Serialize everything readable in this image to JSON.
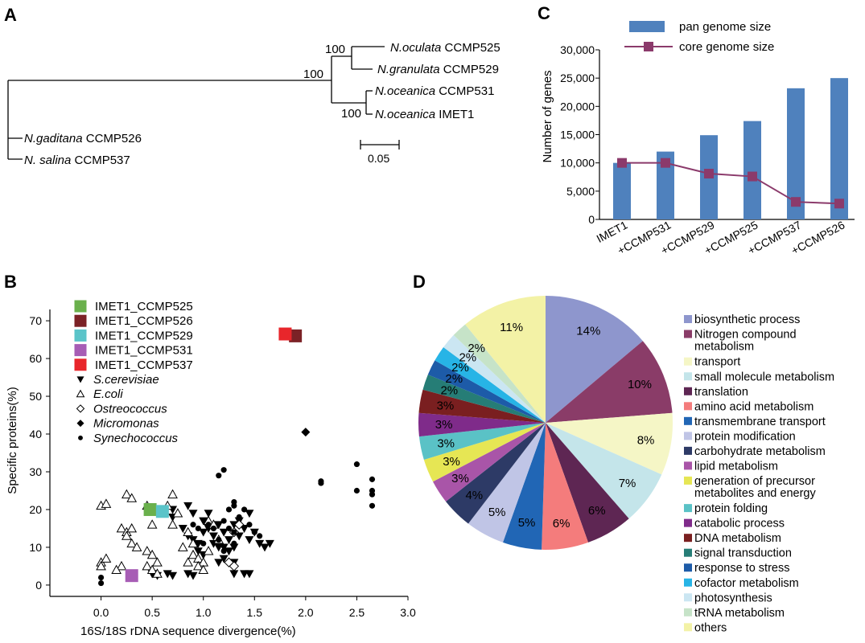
{
  "panels": {
    "a": "A",
    "b": "B",
    "c": "C",
    "d": "D"
  },
  "tree": {
    "taxa": [
      {
        "genus": "N.oculata",
        "strain": "CCMP525"
      },
      {
        "genus": "N.granulata",
        "strain": "CCMP529"
      },
      {
        "genus": "N.oceanica",
        "strain": "CCMP531"
      },
      {
        "genus": "N.oceanica",
        "strain": "IMET1"
      },
      {
        "genus": "N.gaditana",
        "strain": "CCMP526"
      },
      {
        "genus": "N. salina",
        "strain": "CCMP537"
      }
    ],
    "bootstrap": [
      "100",
      "100",
      "100"
    ],
    "scale_label": "0.05"
  },
  "chart_data": [
    {
      "type": "scatter",
      "panel": "B",
      "xlabel": "16S/18S rDNA sequence divergence(%)",
      "ylabel": "Specific proteins(%)",
      "xlim": [
        -0.5,
        3.0
      ],
      "ylim": [
        -3,
        73
      ],
      "xticks": [
        "0.0",
        "0.5",
        "1.0",
        "1.5",
        "2.0",
        "2.5",
        "3.0"
      ],
      "yticks": [
        "0",
        "10",
        "20",
        "30",
        "40",
        "50",
        "60",
        "70"
      ],
      "legend": [
        {
          "label": "IMET1_CCMP525",
          "marker": "square",
          "color": "#6ab04c",
          "italic": false
        },
        {
          "label": "IMET1_CCMP526",
          "marker": "square",
          "color": "#7b2226",
          "italic": false
        },
        {
          "label": "IMET1_CCMP529",
          "marker": "square",
          "color": "#5bc4c9",
          "italic": false
        },
        {
          "label": "IMET1_CCMP531",
          "marker": "square",
          "color": "#a75db5",
          "italic": false
        },
        {
          "label": "IMET1_CCMP537",
          "marker": "square",
          "color": "#e8262b",
          "italic": false
        },
        {
          "label": "S.cerevisiae",
          "marker": "tri-down",
          "color": "#000000",
          "italic": true
        },
        {
          "label": "E.coli",
          "marker": "tri-up-open",
          "color": "#000000",
          "italic": true
        },
        {
          "label": "Ostreococcus",
          "marker": "diamond-open",
          "color": "#000000",
          "italic": true
        },
        {
          "label": "Micromonas",
          "marker": "diamond",
          "color": "#000000",
          "italic": true
        },
        {
          "label": "Synechococcus",
          "marker": "circle",
          "color": "#000000",
          "italic": true
        }
      ],
      "series": [
        {
          "name": "IMET1_CCMP525",
          "points": [
            [
              0.48,
              20.0
            ]
          ]
        },
        {
          "name": "IMET1_CCMP526",
          "points": [
            [
              1.9,
              66.0
            ]
          ]
        },
        {
          "name": "IMET1_CCMP529",
          "points": [
            [
              0.6,
              19.5
            ]
          ]
        },
        {
          "name": "IMET1_CCMP531",
          "points": [
            [
              0.3,
              2.5
            ]
          ]
        },
        {
          "name": "IMET1_CCMP537",
          "points": [
            [
              1.8,
              66.5
            ]
          ]
        },
        {
          "name": "S.cerevisiae",
          "points": [
            [
              0.7,
              20
            ],
            [
              0.7,
              18
            ],
            [
              0.85,
              21
            ],
            [
              0.9,
              19
            ],
            [
              0.8,
              15
            ],
            [
              0.85,
              13
            ],
            [
              0.9,
              12
            ],
            [
              0.95,
              11
            ],
            [
              1.0,
              14
            ],
            [
              1.0,
              17
            ],
            [
              1.05,
              15
            ],
            [
              1.1,
              13
            ],
            [
              1.15,
              16
            ],
            [
              1.2,
              14
            ],
            [
              1.2,
              10
            ],
            [
              1.25,
              12
            ],
            [
              1.3,
              16
            ],
            [
              1.35,
              13
            ],
            [
              1.4,
              15
            ],
            [
              1.45,
              12
            ],
            [
              1.5,
              14
            ],
            [
              1.55,
              11
            ],
            [
              1.6,
              10
            ],
            [
              1.65,
              11
            ],
            [
              1.05,
              19
            ],
            [
              1.1,
              11
            ],
            [
              0.95,
              9
            ],
            [
              1.0,
              8
            ],
            [
              1.15,
              10
            ],
            [
              1.25,
              9
            ],
            [
              1.3,
              10
            ],
            [
              1.35,
              17
            ],
            [
              1.45,
              19
            ],
            [
              1.15,
              6
            ],
            [
              1.2,
              7
            ],
            [
              1.3,
              6
            ],
            [
              0.5,
              3
            ],
            [
              0.55,
              2.5
            ],
            [
              0.65,
              3
            ],
            [
              0.7,
              2.5
            ],
            [
              0.85,
              3
            ],
            [
              0.9,
              2.5
            ],
            [
              1.3,
              3
            ],
            [
              1.4,
              3
            ],
            [
              1.45,
              3
            ]
          ]
        },
        {
          "name": "E.coli",
          "points": [
            [
              0.0,
              21
            ],
            [
              0.05,
              21.5
            ],
            [
              0.25,
              24
            ],
            [
              0.3,
              23
            ],
            [
              0.2,
              15
            ],
            [
              0.25,
              14
            ],
            [
              0.3,
              15
            ],
            [
              0.25,
              13
            ],
            [
              0.3,
              11
            ],
            [
              0.35,
              10
            ],
            [
              0.45,
              21
            ],
            [
              0.5,
              16
            ],
            [
              0.45,
              9
            ],
            [
              0.5,
              8
            ],
            [
              0.55,
              6
            ],
            [
              0.45,
              5
            ],
            [
              0.5,
              4
            ],
            [
              0.55,
              3
            ],
            [
              0.65,
              21
            ],
            [
              0.7,
              24
            ],
            [
              0.75,
              19
            ],
            [
              0.7,
              16
            ],
            [
              0.85,
              14
            ],
            [
              0.8,
              10
            ],
            [
              0.9,
              8
            ],
            [
              0.95,
              7
            ],
            [
              1.0,
              6
            ],
            [
              0.95,
              5
            ],
            [
              1.0,
              4
            ],
            [
              1.05,
              9
            ],
            [
              1.05,
              17
            ],
            [
              1.1,
              16
            ],
            [
              1.15,
              12
            ],
            [
              0.0,
              6
            ],
            [
              0.05,
              7
            ],
            [
              0.0,
              5
            ],
            [
              0.2,
              5
            ],
            [
              0.15,
              4
            ],
            [
              0.85,
              6
            ],
            [
              0.9,
              11
            ]
          ]
        },
        {
          "name": "Ostreococcus",
          "points": [
            [
              1.3,
              14
            ],
            [
              1.35,
              16
            ],
            [
              1.25,
              6
            ],
            [
              1.3,
              5
            ]
          ]
        },
        {
          "name": "Micromonas",
          "points": [
            [
              2.0,
              40.5
            ]
          ]
        },
        {
          "name": "Synechococcus",
          "points": [
            [
              0.0,
              0.5
            ],
            [
              0.0,
              2
            ],
            [
              1.2,
              30.5
            ],
            [
              1.15,
              29
            ],
            [
              1.3,
              22
            ],
            [
              1.3,
              21
            ],
            [
              1.25,
              20
            ],
            [
              1.35,
              18
            ],
            [
              1.2,
              17
            ],
            [
              1.05,
              16
            ],
            [
              1.1,
              15
            ],
            [
              1.25,
              15
            ],
            [
              1.3,
              14
            ],
            [
              1.45,
              16
            ],
            [
              1.5,
              14
            ],
            [
              1.55,
              13
            ],
            [
              0.9,
              16
            ],
            [
              0.95,
              15
            ],
            [
              1.4,
              20
            ],
            [
              2.15,
              27
            ],
            [
              2.15,
              27.5
            ],
            [
              2.5,
              32
            ],
            [
              2.5,
              25
            ],
            [
              2.65,
              28
            ],
            [
              2.65,
              25
            ],
            [
              2.65,
              24
            ],
            [
              2.65,
              21
            ],
            [
              1.0,
              11
            ],
            [
              1.15,
              12
            ],
            [
              1.2,
              9
            ],
            [
              1.3,
              11
            ]
          ]
        }
      ]
    },
    {
      "type": "bar",
      "panel": "C",
      "ylabel": "Number of genes",
      "categories": [
        "IMET1",
        "+CCMP531",
        "+CCMP529",
        "+CCMP525",
        "+CCMP537",
        "+CCMP526"
      ],
      "ylim": [
        0,
        30000
      ],
      "yticks": [
        "0",
        "5,000",
        "10,000",
        "15,000",
        "20,000",
        "25,000",
        "30,000"
      ],
      "series": [
        {
          "name": "pan genome size",
          "kind": "bar",
          "color": "#4f81bd",
          "values": [
            10000,
            12000,
            14900,
            17400,
            23200,
            25000
          ]
        },
        {
          "name": "core genome size",
          "kind": "line",
          "color": "#8b3a6b",
          "values": [
            10000,
            10000,
            8100,
            7600,
            3100,
            2800
          ]
        }
      ]
    },
    {
      "type": "pie",
      "panel": "D",
      "slices": [
        {
          "label": "biosynthetic process",
          "value": 14,
          "color": "#8e96cd"
        },
        {
          "label": "Nitrogen compound metabolism",
          "value": 10,
          "color": "#8a3c68"
        },
        {
          "label": "transport",
          "value": 8,
          "color": "#f5f6c6"
        },
        {
          "label": "small molecule metabolism",
          "value": 7,
          "color": "#c4e5ea"
        },
        {
          "label": "translation",
          "value": 6,
          "color": "#5e2653"
        },
        {
          "label": "amino acid metabolism",
          "value": 6,
          "color": "#f47c7c"
        },
        {
          "label": "transmembrane transport",
          "value": 5,
          "color": "#2166b5"
        },
        {
          "label": "protein modification",
          "value": 5,
          "color": "#c0c5e6"
        },
        {
          "label": "carbohydrate metabolism",
          "value": 4,
          "color": "#2d3a66"
        },
        {
          "label": "lipid metabolism",
          "value": 3,
          "color": "#a955a8"
        },
        {
          "label": "generation of precursor metabolites and energy",
          "value": 3,
          "color": "#e6e654"
        },
        {
          "label": "protein folding",
          "value": 3,
          "color": "#5ac2c6"
        },
        {
          "label": "catabolic process",
          "value": 3,
          "color": "#7f2b8a"
        },
        {
          "label": "DNA metabolism",
          "value": 3,
          "color": "#7a1f20"
        },
        {
          "label": "signal transduction",
          "value": 2,
          "color": "#267d76"
        },
        {
          "label": "response to stress",
          "value": 2,
          "color": "#1d5ba8"
        },
        {
          "label": "cofactor metabolism",
          "value": 2,
          "color": "#27b4e6"
        },
        {
          "label": "photosynthesis",
          "value": 2,
          "color": "#cbe6f2"
        },
        {
          "label": "tRNA metabolism",
          "value": 2,
          "color": "#c6e3c8"
        },
        {
          "label": "others",
          "value": 11,
          "color": "#f3f2a6"
        }
      ]
    }
  ]
}
